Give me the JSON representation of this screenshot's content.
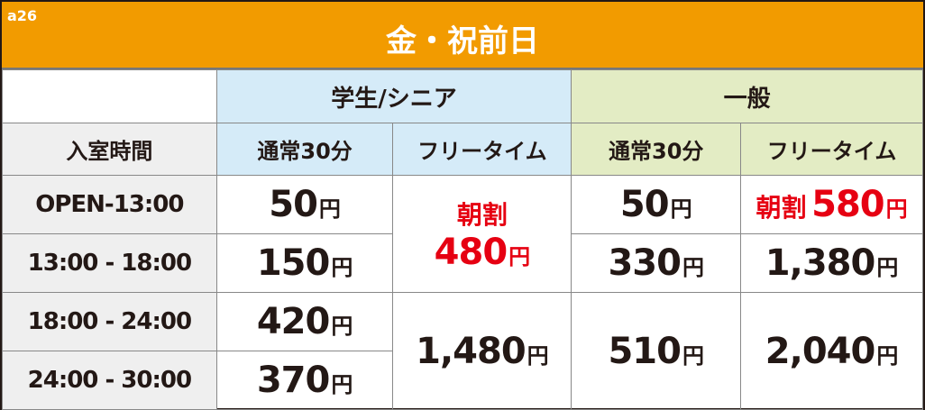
{
  "code": "a26",
  "title": "金・祝前日",
  "groups": {
    "student": "学生/シニア",
    "general": "一般"
  },
  "subheaders": {
    "time": "入室時間",
    "normal": "通常30分",
    "free": "フリータイム"
  },
  "currency": "円",
  "morning": "朝割",
  "rows": [
    {
      "time": "OPEN-13:00",
      "student_normal": "50",
      "general_normal": "50",
      "general_free": "580"
    },
    {
      "time": "13:00 - 18:00",
      "student_normal": "150",
      "general_normal": "330",
      "general_free": "1,380"
    },
    {
      "time": "18:00 - 24:00",
      "student_normal": "420"
    },
    {
      "time": "24:00 - 30:00",
      "student_normal": "370"
    }
  ],
  "student_free_morning": "480",
  "student_free_night": "1,480",
  "general_normal_night": "510",
  "general_free_night": "2,040",
  "colors": {
    "header": "#f29b00",
    "student": "#d5ebf8",
    "general": "#e3ecc4",
    "accent": "#e60012"
  }
}
